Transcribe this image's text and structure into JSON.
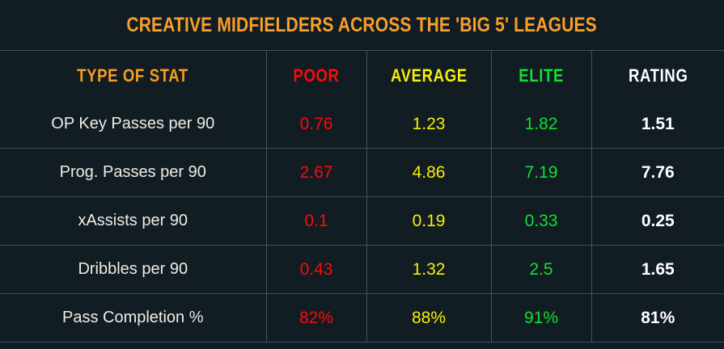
{
  "page": {
    "background": "#121C23",
    "border_color": "#46515A"
  },
  "title": {
    "text": "CREATIVE MIDFIELDERS ACROSS THE 'BIG 5' LEAGUES",
    "color": "#F7A02A"
  },
  "table": {
    "label_color": "#EFECE5",
    "columns": [
      {
        "key": "stat",
        "label": "TYPE OF STAT",
        "color": "#F79E22"
      },
      {
        "key": "poor",
        "label": "POOR",
        "color": "#FB0A0A"
      },
      {
        "key": "average",
        "label": "AVERAGE",
        "color": "#F5EE0B"
      },
      {
        "key": "elite",
        "label": "ELITE",
        "color": "#12DF33"
      },
      {
        "key": "rating",
        "label": "RATING",
        "color": "#FFFFFF"
      }
    ],
    "rows": [
      {
        "stat": "OP Key Passes per 90",
        "poor": "0.76",
        "average": "1.23",
        "elite": "1.82",
        "rating": "1.51"
      },
      {
        "stat": "Prog. Passes per 90",
        "poor": "2.67",
        "average": "4.86",
        "elite": "7.19",
        "rating": "7.76"
      },
      {
        "stat": "xAssists per 90",
        "poor": "0.1",
        "average": "0.19",
        "elite": "0.33",
        "rating": "0.25"
      },
      {
        "stat": "Dribbles per 90",
        "poor": "0.43",
        "average": "1.32",
        "elite": "2.5",
        "rating": "1.65"
      },
      {
        "stat": "Pass Completion %",
        "poor": "82%",
        "average": "88%",
        "elite": "91%",
        "rating": "81%"
      }
    ]
  },
  "chart_data": {
    "type": "table",
    "title": "CREATIVE MIDFIELDERS ACROSS THE 'BIG 5' LEAGUES",
    "columns": [
      "TYPE OF STAT",
      "POOR",
      "AVERAGE",
      "ELITE",
      "RATING"
    ],
    "rows": [
      [
        "OP Key Passes per 90",
        0.76,
        1.23,
        1.82,
        1.51
      ],
      [
        "Prog. Passes per 90",
        2.67,
        4.86,
        7.19,
        7.76
      ],
      [
        "xAssists per 90",
        0.1,
        0.19,
        0.33,
        0.25
      ],
      [
        "Dribbles per 90",
        0.43,
        1.32,
        2.5,
        1.65
      ],
      [
        "Pass Completion %",
        "82%",
        "88%",
        "91%",
        "81%"
      ]
    ],
    "column_colors": [
      "#F79E22",
      "#FB0A0A",
      "#F5EE0B",
      "#12DF33",
      "#FFFFFF"
    ],
    "legend_position": "none",
    "grid": true
  }
}
